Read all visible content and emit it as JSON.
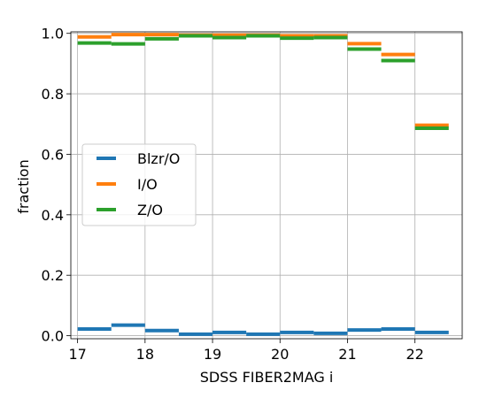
{
  "chart_data": {
    "type": "step",
    "xlabel": "SDSS FIBER2MAG i",
    "ylabel": "fraction",
    "xlim": [
      16.9,
      22.7
    ],
    "ylim": [
      -0.01,
      1.005
    ],
    "xticks": [
      "17",
      "18",
      "19",
      "20",
      "21",
      "22"
    ],
    "yticks": [
      "0.0",
      "0.2",
      "0.4",
      "0.6",
      "0.8",
      "1.0"
    ],
    "grid": true,
    "legend_position": "center-left",
    "bins": [
      [
        17.0,
        17.5
      ],
      [
        17.5,
        18.0
      ],
      [
        18.0,
        18.5
      ],
      [
        18.5,
        19.0
      ],
      [
        19.0,
        19.5
      ],
      [
        19.5,
        20.0
      ],
      [
        20.0,
        20.5
      ],
      [
        20.5,
        21.0
      ],
      [
        21.0,
        21.5
      ],
      [
        21.5,
        22.0
      ],
      [
        22.0,
        22.5
      ]
    ],
    "series": [
      {
        "name": "Blzr/O",
        "color": "#1f77b4",
        "values": [
          0.022,
          0.035,
          0.017,
          0.005,
          0.011,
          0.005,
          0.011,
          0.008,
          0.019,
          0.022,
          0.011
        ]
      },
      {
        "name": "I/O",
        "color": "#ff7f0e",
        "values": [
          0.988,
          0.996,
          0.996,
          0.994,
          0.994,
          0.994,
          0.992,
          0.992,
          0.966,
          0.93,
          0.696
        ]
      },
      {
        "name": "Z/O",
        "color": "#2ca02c",
        "values": [
          0.968,
          0.965,
          0.982,
          0.992,
          0.986,
          0.992,
          0.984,
          0.986,
          0.948,
          0.91,
          0.686
        ]
      }
    ]
  }
}
